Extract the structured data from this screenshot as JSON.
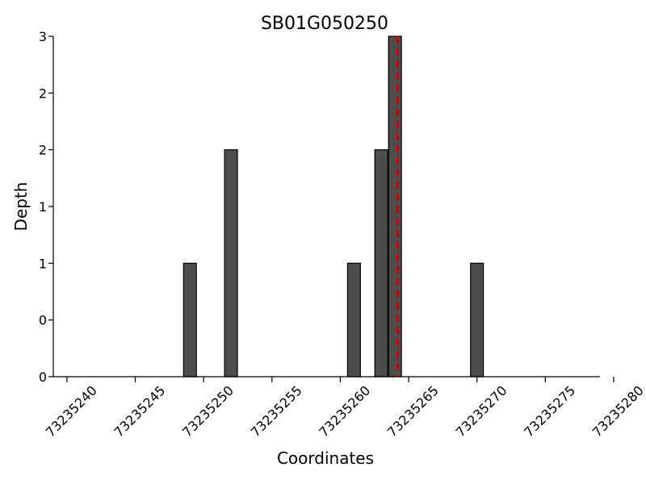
{
  "chart_data": {
    "type": "bar",
    "title": "SB01G050250",
    "xlabel": "Coordinates",
    "ylabel": "Depth",
    "xlim": [
      73235239,
      73235279
    ],
    "ylim": [
      0,
      3
    ],
    "x_ticks": [
      73235240,
      73235245,
      73235250,
      73235255,
      73235260,
      73235265,
      73235270,
      73235275,
      73235280
    ],
    "y_ticks": [
      {
        "value": 0,
        "label": "0"
      },
      {
        "value": 0.5,
        "label": "0"
      },
      {
        "value": 1,
        "label": "1"
      },
      {
        "value": 1.5,
        "label": "1"
      },
      {
        "value": 2,
        "label": "2"
      },
      {
        "value": 2.5,
        "label": "2"
      },
      {
        "value": 3,
        "label": "3"
      }
    ],
    "bars": [
      {
        "x": 73235249,
        "value": 1
      },
      {
        "x": 73235252,
        "value": 2
      },
      {
        "x": 73235261,
        "value": 1
      },
      {
        "x": 73235263,
        "value": 2
      },
      {
        "x": 73235264,
        "value": 3
      },
      {
        "x": 73235270,
        "value": 1
      }
    ],
    "bar_color": "#4d4d4d",
    "marker_line": {
      "x": 73235264.2,
      "color": "#d40000",
      "style": "dashed"
    },
    "grid": false
  }
}
